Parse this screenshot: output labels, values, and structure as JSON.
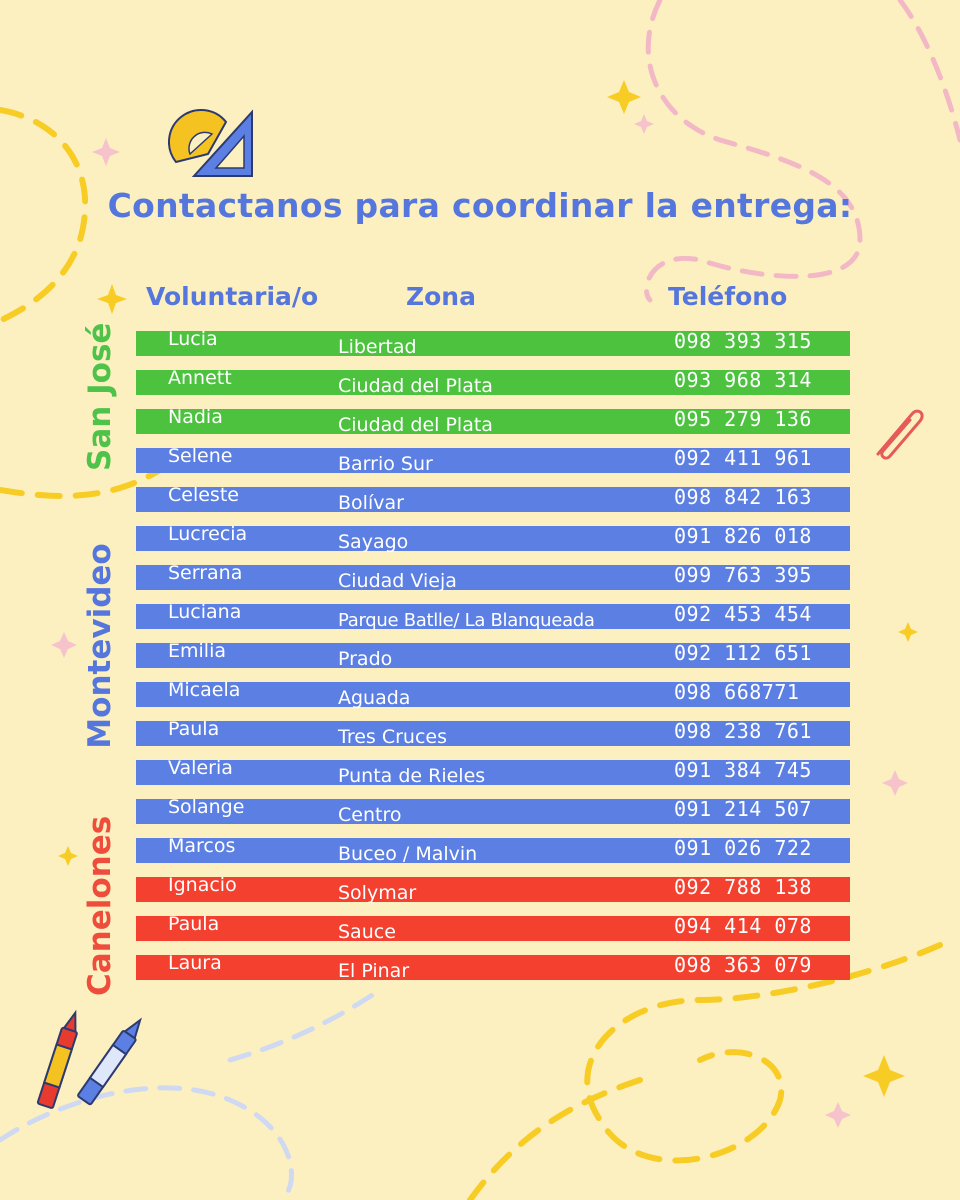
{
  "title": "Contactanos para coordinar la entrega:",
  "columns": {
    "volunteer": "Voluntaria/o",
    "zone": "Zona",
    "phone": "Teléfono"
  },
  "regions": {
    "san_jose": "San José",
    "montevideo": "Montevideo",
    "canelones": "Canelones"
  },
  "colors": {
    "san_jose": "#4cc23f",
    "montevideo": "#5b7fe2",
    "canelones": "#f4402f",
    "accent": "#5577dd",
    "background": "#fdf0c0"
  },
  "rows": [
    {
      "name": "Lucia",
      "zone": "Libertad",
      "phone": "098 393 315",
      "region": "san_jose"
    },
    {
      "name": "Annett",
      "zone": "Ciudad del Plata",
      "phone": "093 968 314",
      "region": "san_jose"
    },
    {
      "name": "Nadia",
      "zone": "Ciudad del Plata",
      "phone": "095 279 136",
      "region": "san_jose"
    },
    {
      "name": "Selene",
      "zone": "Barrio Sur",
      "phone": "092 411 961",
      "region": "montevideo"
    },
    {
      "name": "Celeste",
      "zone": "Bolívar",
      "phone": "098 842 163",
      "region": "montevideo"
    },
    {
      "name": "Lucrecia",
      "zone": "Sayago",
      "phone": "091 826 018",
      "region": "montevideo"
    },
    {
      "name": "Serrana",
      "zone": "Ciudad Vieja",
      "phone": "099 763 395",
      "region": "montevideo"
    },
    {
      "name": "Luciana",
      "zone": "Parque Batlle/ La Blanqueada",
      "phone": "092 453 454",
      "region": "montevideo"
    },
    {
      "name": "Emilia",
      "zone": "Prado",
      "phone": "092 112 651",
      "region": "montevideo"
    },
    {
      "name": "Micaela",
      "zone": "Aguada",
      "phone": "098 668771",
      "region": "montevideo"
    },
    {
      "name": "Paula",
      "zone": "Tres Cruces",
      "phone": "098 238 761",
      "region": "montevideo"
    },
    {
      "name": "Valeria",
      "zone": "Punta de Rieles",
      "phone": "091 384 745",
      "region": "montevideo"
    },
    {
      "name": "Solange",
      "zone": "Centro",
      "phone": "091 214 507",
      "region": "montevideo"
    },
    {
      "name": "Marcos",
      "zone": "Buceo / Malvin",
      "phone": "091 026 722",
      "region": "montevideo"
    },
    {
      "name": "Ignacio",
      "zone": "Solymar",
      "phone": "092 788 138",
      "region": "canelones"
    },
    {
      "name": "Paula",
      "zone": "Sauce",
      "phone": "094 414 078",
      "region": "canelones"
    },
    {
      "name": "Laura",
      "zone": "El Pinar",
      "phone": "098 363 079",
      "region": "canelones"
    }
  ]
}
